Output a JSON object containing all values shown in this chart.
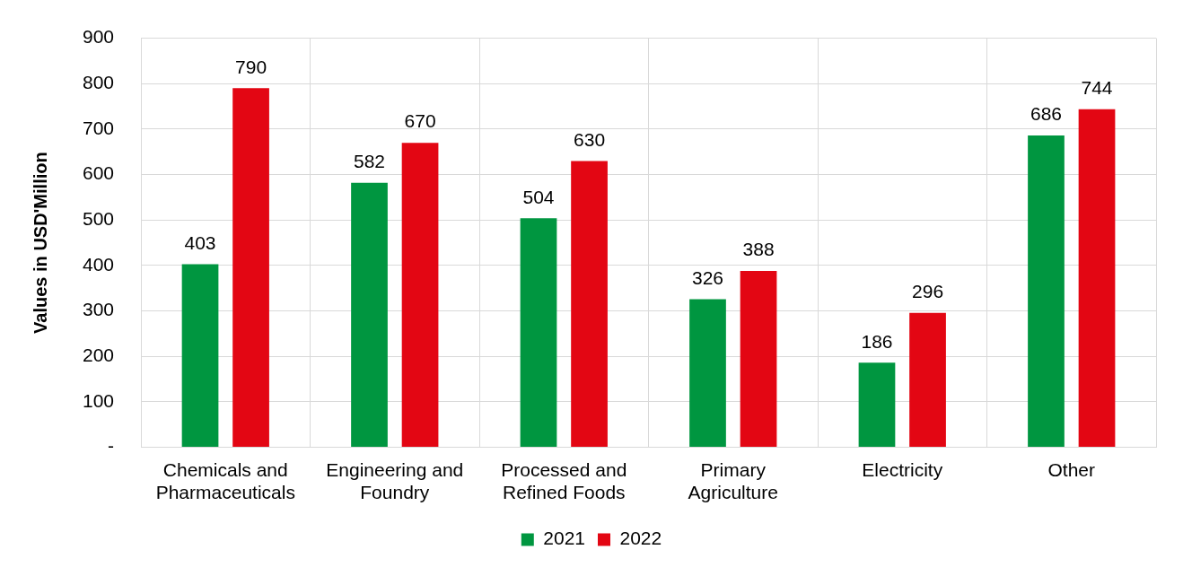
{
  "chart_data": {
    "type": "bar",
    "ylabel": "Values in USD'Million",
    "categories": [
      "Chemicals and Pharmaceuticals",
      "Engineering and Foundry",
      "Processed and Refined Foods",
      "Primary Agriculture",
      "Electricity",
      "Other"
    ],
    "series": [
      {
        "name": "2021",
        "color": "#009640",
        "values": [
          403,
          582,
          504,
          326,
          186,
          686
        ]
      },
      {
        "name": "2022",
        "color": "#e30613",
        "values": [
          790,
          670,
          630,
          388,
          296,
          744
        ]
      }
    ],
    "ylim": [
      0,
      900
    ],
    "yticks": [
      {
        "value": 0,
        "label": "-"
      },
      100,
      200,
      300,
      400,
      500,
      600,
      700,
      800,
      900
    ],
    "grid": true,
    "legend": "bottom",
    "data_labels": true
  }
}
